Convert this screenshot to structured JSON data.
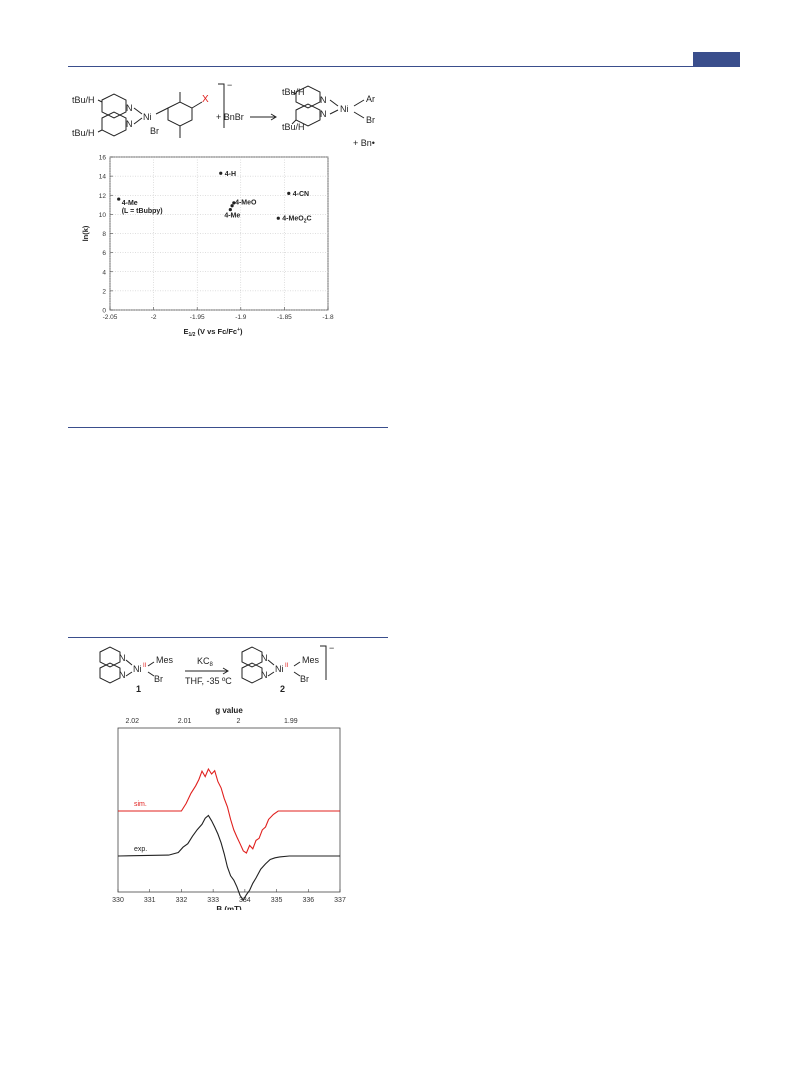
{
  "header": {
    "accent_color": "#3a4e8c"
  },
  "scheme_top": {
    "ligand_substituent_top": "tBu/H",
    "ligand_substituent_bottom": "tBu/H",
    "nitrogen_label": "N",
    "metal_label": "Ni",
    "halide_label": "Br",
    "para_group_label": "X",
    "charge_label": "−",
    "reagent_label": "+ BnBr",
    "product_ligand_top": "tBu/H",
    "product_ligand_bottom": "tBu/H",
    "product_aryl_label": "Ar",
    "product_halide_label": "Br",
    "byproduct_label": "+ Bn•"
  },
  "scheme_bottom": {
    "nitrogen_label": "N",
    "reactant_metal_label": "Ni",
    "reactant_oxidation_label": "II",
    "reactant_aryl_label": "Mes",
    "reactant_halide_label": "Br",
    "reactant_number": "1",
    "reagent_label": "KC",
    "reagent_subscript": "8",
    "conditions_label": "THF, -35 ºC",
    "product_metal_label": "Ni",
    "product_oxidation_label": "II",
    "product_aryl_label": "Mes",
    "product_halide_label": "Br",
    "product_charge_label": "−",
    "product_number": "2"
  },
  "chart_data": [
    {
      "type": "scatter",
      "title": "",
      "ylabel": "ln(k)",
      "xlabel_main": "E",
      "xlabel_sub": "1/2",
      "xlabel_rest": " (V vs Fc/Fc",
      "xlabel_sup": "+",
      "xlabel_end": ")",
      "xlim": [
        -2.05,
        -1.8
      ],
      "ylim": [
        0,
        16
      ],
      "xticks": [
        "-2.05",
        "-2",
        "-1.95",
        "-1.9",
        "-1.85",
        "-1.8"
      ],
      "yticks": [
        "0",
        "2",
        "4",
        "6",
        "8",
        "10",
        "12",
        "14",
        "16"
      ],
      "grid": true,
      "points": [
        {
          "x": -2.04,
          "y": 11.6,
          "label": "4-Me",
          "sublabel": "(L = tBubpy)"
        },
        {
          "x": -1.923,
          "y": 14.3,
          "label": "4-H"
        },
        {
          "x": -1.91,
          "y": 10.9,
          "label": "4-MeO"
        },
        {
          "x": -1.912,
          "y": 10.5,
          "label": "4-Me"
        },
        {
          "x": -1.908,
          "y": 11.2,
          "label": ""
        },
        {
          "x": -1.845,
          "y": 12.2,
          "label": "4-CN"
        },
        {
          "x": -1.857,
          "y": 9.6,
          "label": "4-MeO",
          "label_sub": "2",
          "label_tail": "C"
        }
      ]
    },
    {
      "type": "line",
      "title": "",
      "xlabel": "B (mT)",
      "x2label": "g value",
      "xlim": [
        330,
        337
      ],
      "xticks": [
        "330",
        "331",
        "332",
        "333",
        "334",
        "335",
        "336",
        "337"
      ],
      "x2ticks": [
        {
          "b": 330.45,
          "label": "2.02"
        },
        {
          "b": 332.1,
          "label": "2.01"
        },
        {
          "b": 333.8,
          "label": "2"
        },
        {
          "b": 335.45,
          "label": "1.99"
        }
      ],
      "grid": false,
      "series": [
        {
          "name": "sim.",
          "color": "#e0201e",
          "x": [
            330,
            332.0,
            332.15,
            332.3,
            332.45,
            332.55,
            332.65,
            332.75,
            332.85,
            332.95,
            333.05,
            333.15,
            333.25,
            333.35,
            333.45,
            333.55,
            333.65,
            333.75,
            333.85,
            333.95,
            334.05,
            334.15,
            334.25,
            334.35,
            334.45,
            334.55,
            334.65,
            334.75,
            334.9,
            335.05,
            337
          ],
          "y": [
            0,
            0,
            0.18,
            0.42,
            0.6,
            0.75,
            0.95,
            0.82,
            1.0,
            0.88,
            0.96,
            0.7,
            0.55,
            0.3,
            0.1,
            -0.2,
            -0.45,
            -0.62,
            -0.78,
            -0.95,
            -1.0,
            -0.82,
            -0.9,
            -0.7,
            -0.65,
            -0.45,
            -0.38,
            -0.2,
            -0.08,
            0,
            0
          ]
        },
        {
          "name": "exp.",
          "color": "#222222",
          "x": [
            330,
            331.6,
            331.9,
            332.05,
            332.2,
            332.35,
            332.5,
            332.65,
            332.75,
            332.85,
            332.95,
            333.05,
            333.15,
            333.25,
            333.35,
            333.45,
            333.55,
            333.65,
            333.75,
            333.85,
            333.95,
            334.05,
            334.15,
            334.25,
            334.35,
            334.5,
            334.65,
            334.8,
            334.95,
            335.1,
            335.4,
            337
          ],
          "y": [
            0,
            0.02,
            0.08,
            0.2,
            0.28,
            0.45,
            0.6,
            0.72,
            0.86,
            0.92,
            0.8,
            0.66,
            0.5,
            0.3,
            0.05,
            -0.25,
            -0.45,
            -0.55,
            -0.7,
            -0.9,
            -1.0,
            -0.88,
            -0.78,
            -0.62,
            -0.5,
            -0.3,
            -0.18,
            -0.08,
            -0.04,
            -0.02,
            0,
            0
          ]
        }
      ]
    }
  ]
}
